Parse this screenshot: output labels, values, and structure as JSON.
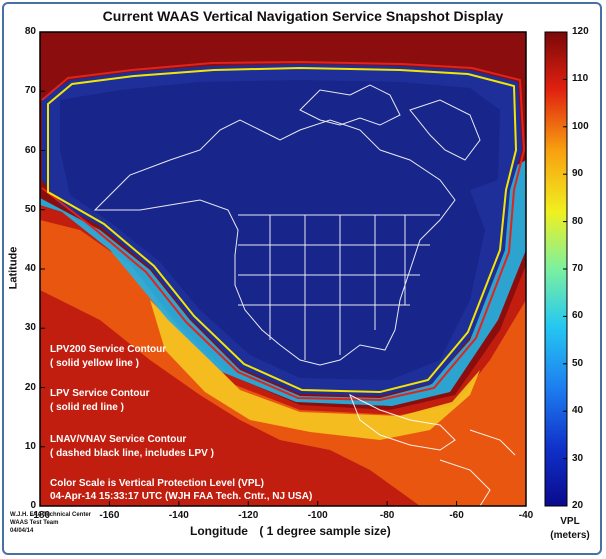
{
  "chart_data": {
    "type": "heatmap",
    "title": "Current WAAS Vertical Navigation Service Snapshot Display",
    "xlabel": "Longitude",
    "xlabel_note": "( 1 degree sample size)",
    "ylabel": "Latitude",
    "xlim": [
      -180,
      -40
    ],
    "ylim": [
      0,
      80
    ],
    "xticks": [
      "-180",
      "-160",
      "-140",
      "-120",
      "-100",
      "-80",
      "-60",
      "-40"
    ],
    "yticks": [
      "0",
      "10",
      "20",
      "30",
      "40",
      "50",
      "60",
      "70",
      "80"
    ],
    "colorbar": {
      "label_line1": "VPL",
      "label_line2": "(meters)",
      "min": 20,
      "max": 120,
      "ticks": [
        "20",
        "30",
        "40",
        "50",
        "60",
        "70",
        "80",
        "90",
        "100",
        "110",
        "120"
      ]
    },
    "legend": [
      {
        "line1": "LPV200 Service Contour",
        "line2": "( solid yellow line )",
        "color": "#f2e600"
      },
      {
        "line1": "LPV Service Contour",
        "line2": "( solid red line )",
        "color": "#e0241b"
      },
      {
        "line1": "LNAV/VNAV Service Contour",
        "line2": "( dashed black line, includes LPV )",
        "color": "#000000"
      }
    ],
    "annotation_line1": "Color Scale is Vertical Protection Level (VPL)",
    "annotation_line2": "04-Apr-14 15:33:17 UTC  (WJH FAA Tech. Cntr., NJ USA)",
    "colors": {
      "background": "#8b0d0d",
      "service_area": "#1e2f9a",
      "lpv200_contour": "#f2e600",
      "lpv_contour": "#e0241b",
      "coastline": "#ffffff"
    }
  },
  "credits": {
    "line1": "W.J.H. FAA Technical Center",
    "line2": "WAAS Test Team",
    "line3": "04/04/14"
  }
}
